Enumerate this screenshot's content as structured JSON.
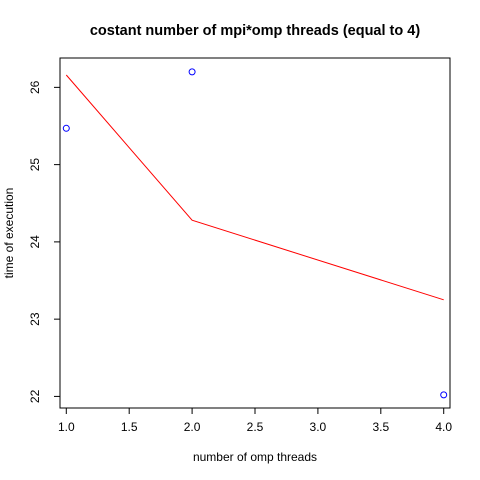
{
  "chart_data": {
    "type": "scatter",
    "title": "costant number of mpi*omp threads (equal to 4)",
    "xlabel": "number of omp threads",
    "ylabel": "time of execution",
    "xlim": [
      0.95,
      4.05
    ],
    "ylim": [
      21.85,
      26.38
    ],
    "xticks": [
      1.0,
      1.5,
      2.0,
      2.5,
      3.0,
      3.5,
      4.0
    ],
    "xtick_labels": [
      "1.0",
      "1.5",
      "2.0",
      "2.5",
      "3.0",
      "3.5",
      "4.0"
    ],
    "yticks": [
      22,
      23,
      24,
      25,
      26
    ],
    "ytick_labels": [
      "22",
      "23",
      "24",
      "25",
      "26"
    ],
    "grid": false,
    "series": [
      {
        "kind": "points",
        "marker": "open-circle",
        "color": "#0000ff",
        "x": [
          1,
          2,
          4
        ],
        "y": [
          25.47,
          26.2,
          22.02
        ]
      },
      {
        "kind": "line",
        "color": "#ff0000",
        "x": [
          1,
          2,
          4
        ],
        "y": [
          26.16,
          24.28,
          23.25
        ]
      }
    ]
  }
}
